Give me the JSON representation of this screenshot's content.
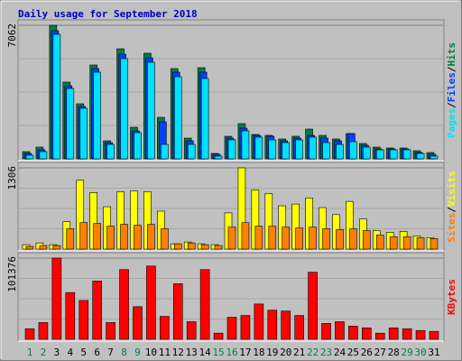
{
  "chart_data": [
    {
      "type": "bar",
      "title": "Daily usage for September 2018",
      "ylim": [
        0,
        7062
      ],
      "yticks": [
        7062
      ],
      "legend_separator": "/",
      "series": [
        {
          "name": "Hits",
          "color": "#008040",
          "values": [
            382,
            620,
            7062,
            4056,
            2911,
            4962,
            954,
            5821,
            1670,
            5583,
            2195,
            4772,
            1097,
            4819,
            286,
            1193,
            1861,
            1288,
            1241,
            1050,
            1193,
            1575,
            1241,
            1050,
            1336,
            811,
            620,
            573,
            573,
            429,
            334
          ]
        },
        {
          "name": "Files",
          "color": "#0040ff",
          "values": [
            286,
            477,
            6776,
            3865,
            2768,
            4772,
            859,
            5535,
            1479,
            5344,
            1956,
            4581,
            954,
            4581,
            239,
            1097,
            1622,
            1241,
            1193,
            954,
            1097,
            1241,
            1097,
            954,
            1336,
            716,
            525,
            525,
            525,
            334,
            239
          ]
        },
        {
          "name": "Pages",
          "color": "#00e0ff",
          "values": [
            191,
            382,
            6585,
            3722,
            2672,
            4581,
            763,
            5297,
            1384,
            5106,
            763,
            4342,
            763,
            4247,
            143,
            1002,
            1479,
            1145,
            1002,
            859,
            1002,
            1145,
            859,
            763,
            907,
            620,
            477,
            477,
            477,
            286,
            143
          ]
        }
      ]
    },
    {
      "type": "bar",
      "ylim": [
        0,
        1306
      ],
      "yticks": [
        1306
      ],
      "legend_separator": "/",
      "series": [
        {
          "name": "Visits",
          "color": "#ffff00",
          "values": [
            71,
            99,
            71,
            440,
            1108,
            909,
            681,
            923,
            937,
            923,
            610,
            85,
            114,
            85,
            71,
            582,
            1306,
            951,
            894,
            696,
            724,
            823,
            667,
            554,
            767,
            483,
            298,
            270,
            284,
            213,
            185
          ]
        },
        {
          "name": "Sites",
          "color": "#ff8000",
          "values": [
            43,
            57,
            57,
            327,
            426,
            412,
            369,
            398,
            383,
            398,
            327,
            85,
            99,
            71,
            57,
            355,
            426,
            369,
            369,
            355,
            341,
            355,
            327,
            312,
            327,
            298,
            227,
            199,
            199,
            185,
            170
          ]
        }
      ]
    },
    {
      "type": "bar",
      "ylim": [
        0,
        101376
      ],
      "yticks": [
        101376
      ],
      "categories": [
        "1",
        "2",
        "3",
        "4",
        "5",
        "6",
        "7",
        "8",
        "9",
        "10",
        "11",
        "12",
        "13",
        "14",
        "15",
        "16",
        "17",
        "18",
        "19",
        "20",
        "21",
        "22",
        "23",
        "24",
        "25",
        "26",
        "27",
        "28",
        "29",
        "30",
        "31"
      ],
      "category_colors": [
        "#008040",
        "#008040",
        "#000000",
        "#000000",
        "#000000",
        "#000000",
        "#000000",
        "#008040",
        "#008040",
        "#000000",
        "#000000",
        "#000000",
        "#000000",
        "#000000",
        "#008040",
        "#008040",
        "#000000",
        "#000000",
        "#000000",
        "#000000",
        "#000000",
        "#008040",
        "#008040",
        "#000000",
        "#000000",
        "#000000",
        "#000000",
        "#000000",
        "#008040",
        "#008040",
        "#000000"
      ],
      "series": [
        {
          "name": "KBytes",
          "color": "#ff0000",
          "values": [
            13223,
            20936,
            101376,
            58400,
            48484,
            72724,
            20936,
            87052,
            40771,
            91459,
            28649,
            69418,
            22038,
            87052,
            7714,
            27547,
            29751,
            44077,
            36364,
            35262,
            29751,
            83746,
            19834,
            22038,
            16529,
            14324,
            7714,
            14324,
            13223,
            11019,
            9917
          ]
        }
      ]
    }
  ]
}
